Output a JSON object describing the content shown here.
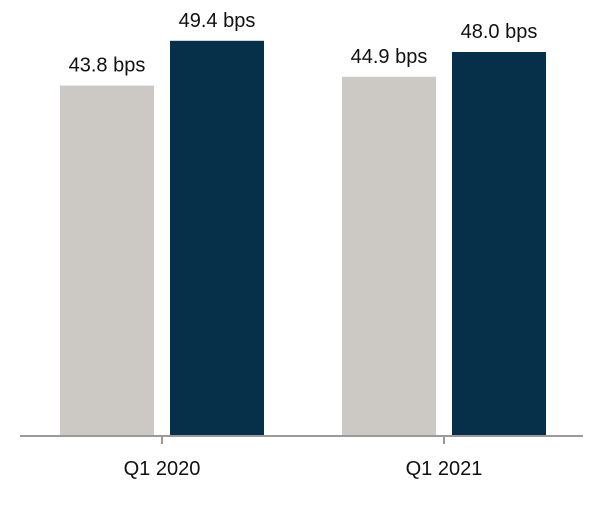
{
  "chart_data": {
    "type": "bar",
    "categories": [
      "Q1 2020",
      "Q1 2021"
    ],
    "series": [
      {
        "color": "#ccc9c4",
        "values": [
          43.8,
          44.9
        ],
        "labels": [
          "43.8 bps",
          "44.9 bps"
        ]
      },
      {
        "color": "#06304a",
        "values": [
          49.4,
          48.0
        ],
        "labels": [
          "49.4 bps",
          "48.0 bps"
        ]
      }
    ],
    "unit": "bps",
    "axis_color": "#9a9a9a",
    "grid": false,
    "legend": "none"
  }
}
